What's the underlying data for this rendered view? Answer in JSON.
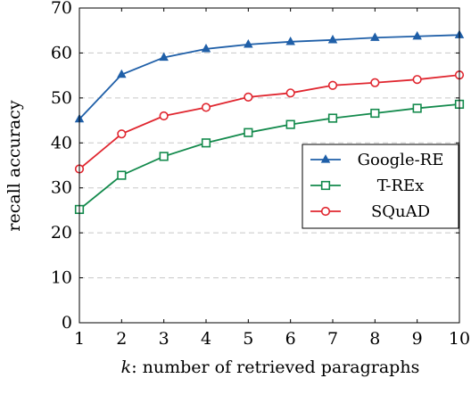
{
  "chart_data": {
    "type": "line",
    "xlabel_var": "k",
    "xlabel_rest": ": number of retrieved paragraphs",
    "ylabel": "recall accuracy",
    "x": [
      1,
      2,
      3,
      4,
      5,
      6,
      7,
      8,
      9,
      10
    ],
    "xlim": [
      1,
      10
    ],
    "ylim": [
      0,
      70
    ],
    "yticks": [
      0,
      10,
      20,
      30,
      40,
      50,
      60,
      70
    ],
    "grid": "horizontal dashed",
    "legend_position": "center-right",
    "series": [
      {
        "name": "Google-RE",
        "color": "#1f5fa8",
        "marker": "triangle",
        "values": [
          45.3,
          55.2,
          59.0,
          60.9,
          61.9,
          62.5,
          62.9,
          63.4,
          63.7,
          64.0
        ]
      },
      {
        "name": "T-REx",
        "color": "#138a4c",
        "marker": "square",
        "values": [
          25.2,
          32.8,
          37.0,
          40.0,
          42.3,
          44.1,
          45.5,
          46.6,
          47.7,
          48.6
        ]
      },
      {
        "name": "SQuAD",
        "color": "#e0262f",
        "marker": "circle",
        "values": [
          34.2,
          42.0,
          46.0,
          47.9,
          50.2,
          51.1,
          52.8,
          53.4,
          54.1,
          55.1
        ]
      }
    ]
  }
}
